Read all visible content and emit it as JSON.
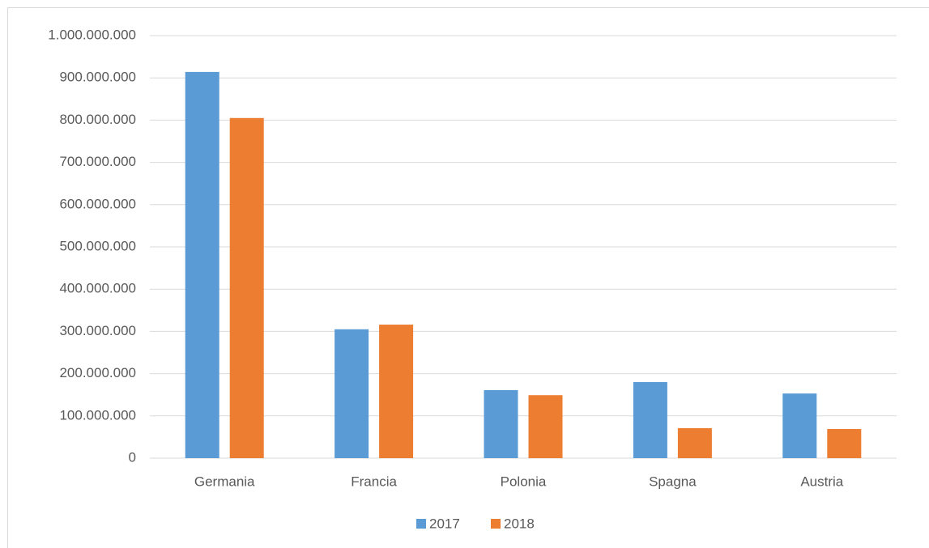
{
  "chart_data": {
    "type": "bar",
    "categories": [
      "Germania",
      "Francia",
      "Polonia",
      "Spagna",
      "Austria"
    ],
    "series": [
      {
        "name": "2017",
        "color": "#5b9bd5",
        "values": [
          914000000,
          305000000,
          161000000,
          180000000,
          153000000
        ]
      },
      {
        "name": "2018",
        "color": "#ed7d31",
        "values": [
          805000000,
          316000000,
          149000000,
          71000000,
          69000000
        ]
      }
    ],
    "ylim": [
      0,
      1000000000
    ],
    "yticks": [
      0,
      {
        "value": 100000000,
        "label": "100.000.000"
      },
      {
        "value": 200000000,
        "label": "200.000.000"
      },
      {
        "value": 300000000,
        "label": "300.000.000"
      },
      {
        "value": 400000000,
        "label": "400.000.000"
      },
      {
        "value": 500000000,
        "label": "500.000.000"
      },
      {
        "value": 600000000,
        "label": "600.000.000"
      },
      {
        "value": 700000000,
        "label": "700.000.000"
      },
      {
        "value": 800000000,
        "label": "800.000.000"
      },
      {
        "value": 900000000,
        "label": "900.000.000"
      },
      {
        "value": 1000000000,
        "label": "1.000.000.000"
      }
    ],
    "grid": true,
    "legend": "bottom"
  }
}
